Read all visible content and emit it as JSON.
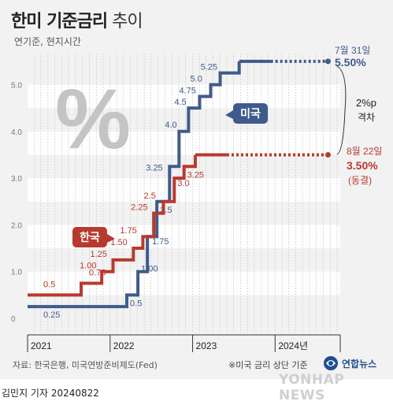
{
  "title_bold": "한미 기준금리",
  "title_light": "추이",
  "subtitle": "연기준, 현지시간",
  "percent_symbol": "%",
  "source": "자료: 한국은행, 미국연방준비제도(Fed)",
  "note": "※미국 금리 상단 기준",
  "logo": "연합뉴스",
  "watermark": "YONHAP NEWS",
  "byline": "김민지 기자  20240822",
  "colors": {
    "us": "#3f5b8c",
    "korea": "#b83a2e",
    "background": "#f2f2f2"
  },
  "chart_data": {
    "type": "line",
    "x_axis_labels": [
      "2021",
      "2022",
      "2023",
      "2024년"
    ],
    "ylim": [
      0,
      5.75
    ],
    "y_ticks": [
      0,
      1.0,
      2.0,
      3.0,
      4.0,
      5.0
    ],
    "y_tick_labels": [
      "0",
      "1.0",
      "2.0",
      "3.0",
      "4.0",
      "5.0"
    ],
    "step": true,
    "series": [
      {
        "name": "미국",
        "color_key": "us",
        "x": [
          "2021-01-01",
          "2022-03-16",
          "2022-05-04",
          "2022-06-15",
          "2022-07-27",
          "2022-09-21",
          "2022-11-02",
          "2022-12-14",
          "2023-02-01",
          "2023-03-22",
          "2023-05-03",
          "2023-07-26",
          "2024-08-22"
        ],
        "y": [
          0.25,
          0.5,
          1.0,
          1.75,
          2.5,
          3.25,
          4.0,
          4.5,
          4.75,
          5.0,
          5.25,
          5.5,
          5.5
        ],
        "point_labels": [
          "0.25",
          "0.5",
          "1.00",
          "1.75",
          "2.5",
          "3.25",
          "4.0",
          "4.5",
          "4.75",
          "5.0",
          "5.25",
          "",
          ""
        ],
        "end_label_date": "7월 31일",
        "end_label_value": "5.50%"
      },
      {
        "name": "한국",
        "color_key": "korea",
        "x": [
          "2021-01-01",
          "2021-08-26",
          "2021-11-25",
          "2022-01-14",
          "2022-04-14",
          "2022-05-26",
          "2022-07-13",
          "2022-08-25",
          "2022-10-12",
          "2022-11-24",
          "2023-01-13",
          "2024-08-22"
        ],
        "y": [
          0.5,
          0.75,
          1.0,
          1.25,
          1.5,
          1.75,
          2.25,
          2.5,
          3.0,
          3.25,
          3.5,
          3.5
        ],
        "point_labels": [
          "0.5",
          "0.75",
          "1.00",
          "1.25",
          "1.50",
          "1.75",
          "2.25",
          "2.5",
          "3.0",
          "3.25",
          "",
          ""
        ],
        "end_label_date": "8월 22일",
        "end_label_value": "3.50%",
        "end_label_note": "(동결)"
      }
    ],
    "gap_annotation": {
      "value": "2%p",
      "label": "격차"
    }
  }
}
